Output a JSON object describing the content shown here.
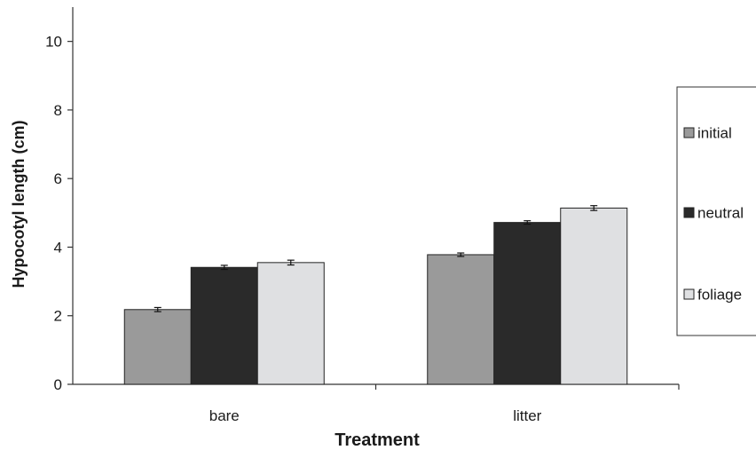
{
  "chart_data": {
    "type": "bar",
    "title": "",
    "xlabel": "Treatment",
    "ylabel": "Hypocotyl length (cm)",
    "ylim": [
      0,
      11
    ],
    "yticks": [
      0,
      2,
      4,
      6,
      8,
      10
    ],
    "categories": [
      "bare",
      "litter"
    ],
    "series": [
      {
        "name": "initial",
        "color": "#9a9a9a",
        "values": [
          2.18,
          3.78
        ],
        "errors": [
          0.06,
          0.05
        ]
      },
      {
        "name": "neutral",
        "color": "#2a2a2a",
        "values": [
          3.41,
          4.72
        ],
        "errors": [
          0.06,
          0.05
        ]
      },
      {
        "name": "foliage",
        "color": "#dfe0e2",
        "values": [
          3.55,
          5.14
        ],
        "errors": [
          0.07,
          0.07
        ]
      }
    ],
    "legend_position": "right",
    "grid": false
  }
}
